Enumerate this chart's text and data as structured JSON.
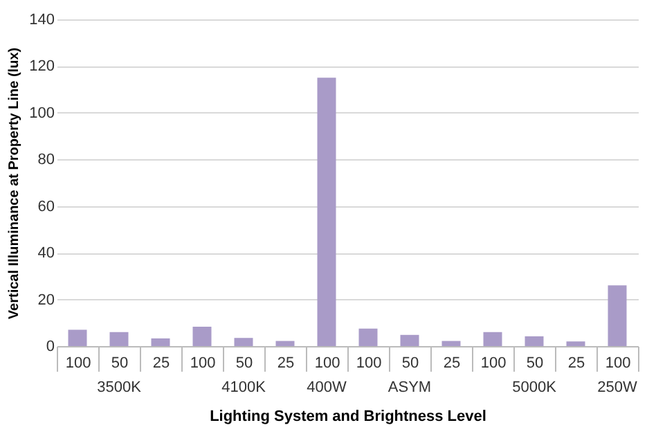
{
  "chart_data": {
    "type": "bar",
    "xlabel": "Lighting System and Brightness Level",
    "ylabel": "Vertical Illuminance at Property Line (lux)",
    "categories": [
      "100",
      "50",
      "25",
      "100",
      "50",
      "25",
      "100",
      "100",
      "50",
      "25",
      "100",
      "50",
      "25",
      "100"
    ],
    "values": [
      7,
      6,
      3.3,
      8.3,
      3.5,
      2.2,
      115,
      7.5,
      4.8,
      2.2,
      6,
      4.2,
      2,
      26
    ],
    "color": "#a99bc8",
    "ylim": [
      0,
      140
    ],
    "yticks": [
      0,
      20,
      40,
      60,
      80,
      100,
      120,
      140
    ],
    "grid": "y",
    "annotations": [
      "3500K",
      "4100K",
      "400W",
      "ASYM",
      "5000K",
      "250W"
    ]
  }
}
